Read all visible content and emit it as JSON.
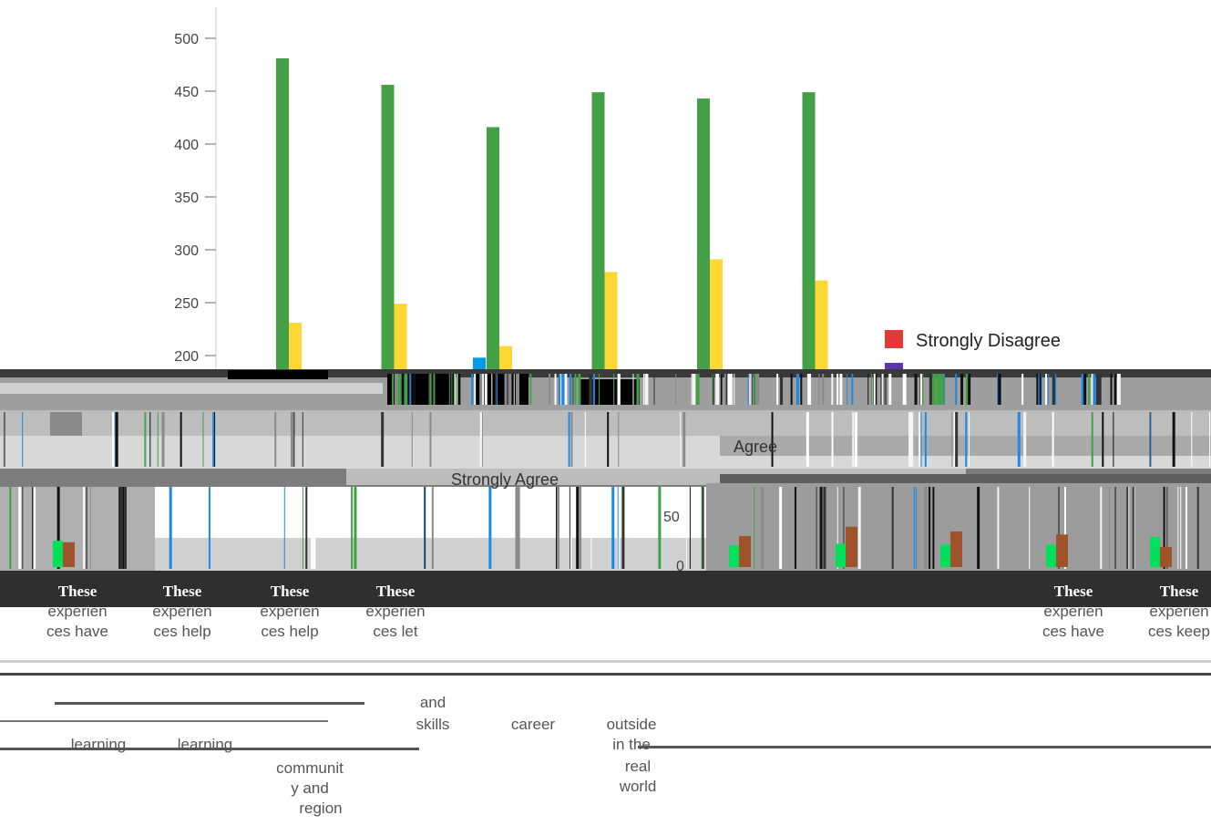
{
  "chart_data": {
    "type": "bar",
    "title": "",
    "xlabel": "",
    "ylabel": "",
    "ylim": [
      0,
      500
    ],
    "visible_ylim": [
      200,
      500
    ],
    "yticks": [
      200,
      250,
      300,
      350,
      400,
      450,
      500
    ],
    "grid": false,
    "legend_placement": "right",
    "legend": [
      {
        "label": "Strongly Disagree",
        "color": "#e53935"
      }
    ],
    "glitch_legend_fragments": [
      "Agree",
      "Strongly Agree"
    ],
    "glitch_axis_fragments": [
      "50",
      "0"
    ],
    "series_colors": {
      "strongly_agree": "#43a047",
      "agree": "#fdd835",
      "strongly_disagree": "#e53935",
      "blue": "#039be5",
      "purple": "#5e35b1"
    },
    "series": [
      {
        "name": "",
        "color": "#43a047",
        "values": [
          481,
          456,
          416,
          449,
          443,
          449
        ]
      },
      {
        "name": "",
        "color": "#fdd835",
        "values": [
          231,
          249,
          209,
          279,
          291,
          271
        ]
      },
      {
        "name": "",
        "color": "#039be5",
        "values": [
          0,
          0,
          198,
          0,
          0,
          0
        ]
      }
    ],
    "category_label_fragments": [
      {
        "lines": [
          "These",
          "experien",
          "ces have"
        ]
      },
      {
        "lines": [
          "These",
          "experien",
          "ces help"
        ]
      },
      {
        "lines": [
          "These",
          "experien",
          "ces help"
        ]
      },
      {
        "lines": [
          "These",
          "experien",
          "ces let"
        ]
      },
      {
        "lines": [
          "These",
          "experien",
          "ces have"
        ]
      },
      {
        "lines": [
          "These",
          "experien",
          "ces keep"
        ]
      }
    ],
    "lower_label_fragments": [
      [
        "learning",
        "learning",
        "communit",
        "y and",
        "region"
      ],
      [
        "and",
        "skills",
        "career",
        "outside",
        "in the",
        "real",
        "world"
      ]
    ],
    "lower_inset_bars": [
      {
        "green": 34,
        "brown": 32
      },
      {
        "green": 28,
        "brown": 40
      },
      {
        "green": 30,
        "brown": 52
      },
      {
        "green": 29,
        "brown": 46
      },
      {
        "green": 29,
        "brown": 42
      },
      {
        "green": 39,
        "brown": 26
      }
    ]
  }
}
